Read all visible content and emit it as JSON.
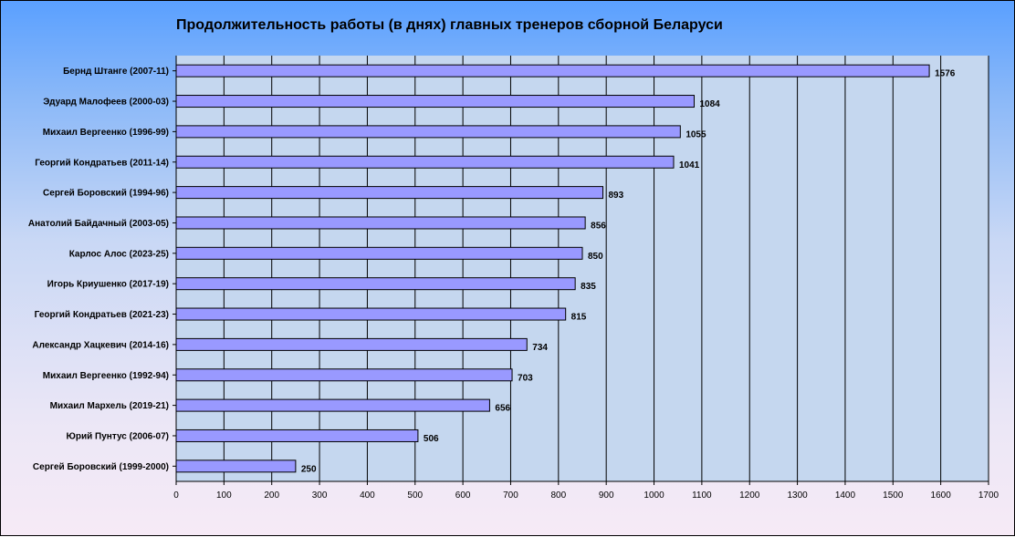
{
  "chart_data": {
    "type": "bar",
    "orientation": "horizontal",
    "title": "Продолжительность работы (в днях)  главных тренеров сборной Беларуси",
    "categories": [
      "Бернд Штанге (2007-11)",
      "Эдуард Малофеев (2000-03)",
      "Михаил Вергеенко (1996-99)",
      "Георгий Кондратьев (2011-14)",
      "Сергей Боровский (1994-96)",
      "Анатолий Байдачный (2003-05)",
      "Карлос Алос (2023-25)",
      "Игорь Криушенко (2017-19)",
      "Георгий Кондратьев (2021-23)",
      "Александр Хацкевич (2014-16)",
      "Михаил Вергеенко (1992-94)",
      "Михаил Мархель (2019-21)",
      "Юрий Пунтус (2006-07)",
      "Сергей Боровский (1999-2000)"
    ],
    "values": [
      1576,
      1084,
      1055,
      1041,
      893,
      856,
      850,
      835,
      815,
      734,
      703,
      656,
      506,
      250
    ],
    "xlim": [
      0,
      1700
    ],
    "xticks": [
      0,
      100,
      200,
      300,
      400,
      500,
      600,
      700,
      800,
      900,
      1000,
      1100,
      1200,
      1300,
      1400,
      1500,
      1600,
      1700
    ],
    "grid": "vertical",
    "legend": "none",
    "colors": {
      "bar": "#9999ff",
      "bar_border": "#000000",
      "plot_background": "#c5d7ef",
      "grid": "#000000"
    }
  }
}
